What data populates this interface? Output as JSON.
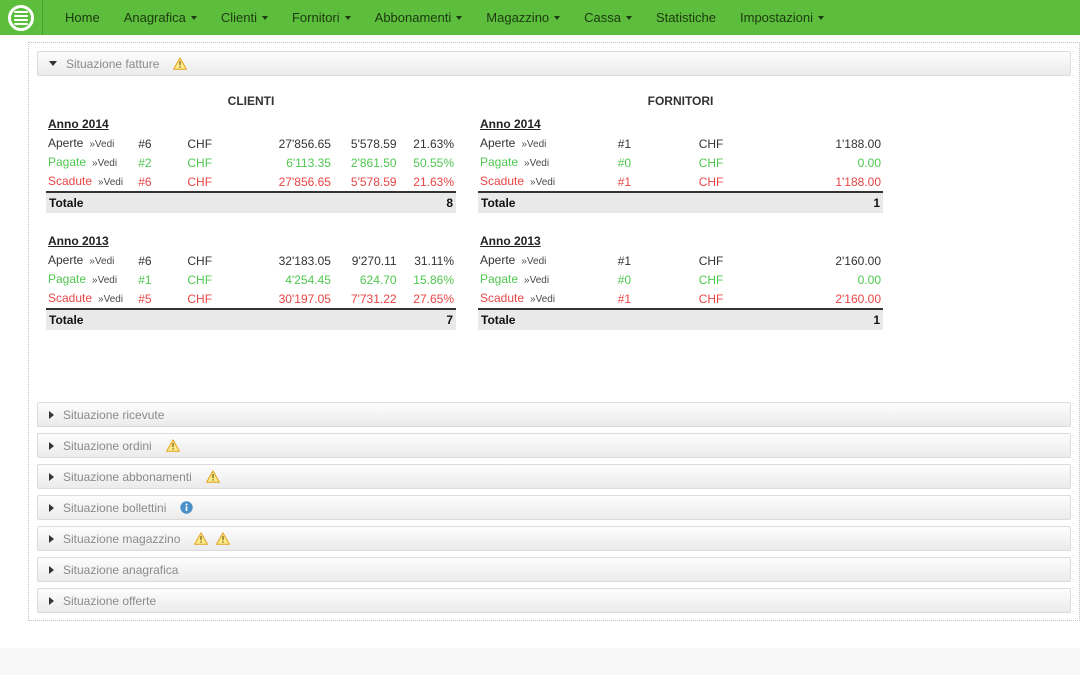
{
  "colors": {
    "nav_background": "#5cbe3c",
    "paid_row": "#4fc74f",
    "overdue_row": "#e84545"
  },
  "nav": {
    "items": [
      {
        "label": "Home",
        "caret": false
      },
      {
        "label": "Anagrafica",
        "caret": true
      },
      {
        "label": "Clienti",
        "caret": true
      },
      {
        "label": "Fornitori",
        "caret": true
      },
      {
        "label": "Abbonamenti",
        "caret": true
      },
      {
        "label": "Magazzino",
        "caret": true
      },
      {
        "label": "Cassa",
        "caret": true
      },
      {
        "label": "Statistiche",
        "caret": false
      },
      {
        "label": "Impostazioni",
        "caret": true
      }
    ]
  },
  "accordion": {
    "sections": [
      {
        "id": "fatture",
        "title": "Situazione fatture",
        "expanded": true,
        "icons": [
          "warning"
        ]
      },
      {
        "id": "ricevute",
        "title": "Situazione ricevute",
        "expanded": false,
        "icons": []
      },
      {
        "id": "ordini",
        "title": "Situazione ordini",
        "expanded": false,
        "icons": [
          "warning"
        ]
      },
      {
        "id": "abbonamenti",
        "title": "Situazione abbonamenti",
        "expanded": false,
        "icons": [
          "warning"
        ]
      },
      {
        "id": "bollettini",
        "title": "Situazione bollettini",
        "expanded": false,
        "icons": [
          "info"
        ]
      },
      {
        "id": "magazzino",
        "title": "Situazione magazzino",
        "expanded": false,
        "icons": [
          "warning",
          "warning"
        ]
      },
      {
        "id": "anagrafica",
        "title": "Situazione anagrafica",
        "expanded": false,
        "icons": []
      },
      {
        "id": "offerte",
        "title": "Situazione offerte",
        "expanded": false,
        "icons": []
      }
    ]
  },
  "fatture": {
    "vedi_label": "»Vedi",
    "total_label": "Totale",
    "tables": [
      {
        "title": "CLIENTI",
        "layout": "clienti",
        "years": [
          {
            "year": "Anno 2014",
            "rows": [
              {
                "label": "Aperte",
                "status": "open",
                "count": "#6",
                "currency": "CHF",
                "amount": "27'856.65",
                "amount2": "5'578.59",
                "percent": "21.63%"
              },
              {
                "label": "Pagate",
                "status": "paid",
                "count": "#2",
                "currency": "CHF",
                "amount": "6'113.35",
                "amount2": "2'861.50",
                "percent": "50.55%"
              },
              {
                "label": "Scadute",
                "status": "overdue",
                "count": "#6",
                "currency": "CHF",
                "amount": "27'856.65",
                "amount2": "5'578.59",
                "percent": "21.63%"
              }
            ],
            "total": "8"
          },
          {
            "year": "Anno 2013",
            "rows": [
              {
                "label": "Aperte",
                "status": "open",
                "count": "#6",
                "currency": "CHF",
                "amount": "32'183.05",
                "amount2": "9'270.11",
                "percent": "31.11%"
              },
              {
                "label": "Pagate",
                "status": "paid",
                "count": "#1",
                "currency": "CHF",
                "amount": "4'254.45",
                "amount2": "624.70",
                "percent": "15.86%"
              },
              {
                "label": "Scadute",
                "status": "overdue",
                "count": "#5",
                "currency": "CHF",
                "amount": "30'197.05",
                "amount2": "7'731.22",
                "percent": "27.65%"
              }
            ],
            "total": "7"
          }
        ]
      },
      {
        "title": "FORNITORI",
        "layout": "fornitori",
        "years": [
          {
            "year": "Anno 2014",
            "rows": [
              {
                "label": "Aperte",
                "status": "open",
                "count": "#1",
                "currency": "CHF",
                "amount": "1'188.00"
              },
              {
                "label": "Pagate",
                "status": "paid",
                "count": "#0",
                "currency": "CHF",
                "amount": "0.00"
              },
              {
                "label": "Scadute",
                "status": "overdue",
                "count": "#1",
                "currency": "CHF",
                "amount": "1'188.00"
              }
            ],
            "total": "1"
          },
          {
            "year": "Anno 2013",
            "rows": [
              {
                "label": "Aperte",
                "status": "open",
                "count": "#1",
                "currency": "CHF",
                "amount": "2'160.00"
              },
              {
                "label": "Pagate",
                "status": "paid",
                "count": "#0",
                "currency": "CHF",
                "amount": "0.00"
              },
              {
                "label": "Scadute",
                "status": "overdue",
                "count": "#1",
                "currency": "CHF",
                "amount": "2'160.00"
              }
            ],
            "total": "1"
          }
        ]
      }
    ]
  }
}
